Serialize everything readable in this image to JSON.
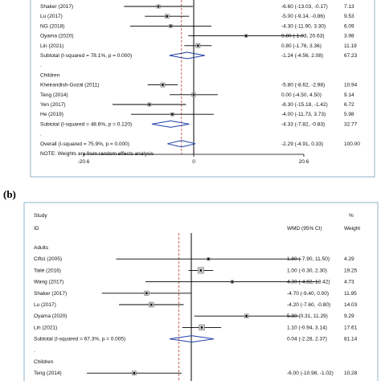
{
  "panel_labels": {
    "b": "(b)"
  },
  "chart_data": [
    {
      "type": "forest",
      "panel": "a",
      "xticks": [
        -20.6,
        0,
        20.6
      ],
      "xlim": [
        -20.6,
        20.6
      ],
      "overall_line": -2.29,
      "rows": [
        {
          "kind": "study",
          "label": "Shaker (2017)",
          "est": -6.6,
          "lo": -13.03,
          "hi": -0.17,
          "ci": "-6.60 (-13.03, -0.17)",
          "weight": "7.13"
        },
        {
          "kind": "study",
          "label": "Lu (2017)",
          "est": -5.0,
          "lo": -9.14,
          "hi": -0.86,
          "ci": "-5.00 (-9.14, -0.86)",
          "weight": "9.53"
        },
        {
          "kind": "study",
          "label": "NG (2018)",
          "est": -4.3,
          "lo": -11.9,
          "hi": 3.3,
          "ci": "-4.30 (-11.90, 3.30)",
          "weight": "6.09"
        },
        {
          "kind": "study",
          "label": "Oyama (2020)",
          "est": 9.8,
          "lo": -1.03,
          "hi": 20.63,
          "ci": "9.80 (-1.03, 20.63)",
          "weight": "3.98"
        },
        {
          "kind": "study",
          "label": "Lin (2021)",
          "est": 0.8,
          "lo": -1.76,
          "hi": 3.36,
          "ci": "0.80 (-1.76, 3.36)",
          "weight": "11.19"
        },
        {
          "kind": "subtotal",
          "label": "Subtotal  (I-squared = 78.1%, p = 0.000)",
          "est": -1.24,
          "lo": -4.56,
          "hi": 2.08,
          "ci": "-1.24 (-4.56, 2.08)",
          "weight": "67.23"
        },
        {
          "kind": "dot"
        },
        {
          "kind": "header",
          "label": "Children"
        },
        {
          "kind": "study",
          "label": "Kheirandish-Gozal (2011)",
          "est": -5.8,
          "lo": -8.62,
          "hi": -2.98,
          "ci": "-5.80 (-8.62, -2.98)",
          "weight": "10.94"
        },
        {
          "kind": "study",
          "label": "Teng (2014)",
          "est": 0.0,
          "lo": -4.5,
          "hi": 4.5,
          "ci": "0.00 (-4.50, 4.50)",
          "weight": "9.14"
        },
        {
          "kind": "study",
          "label": "Yen (2017)",
          "est": -8.3,
          "lo": -15.18,
          "hi": -1.42,
          "ci": "-8.30 (-15.18, -1.42)",
          "weight": "6.72"
        },
        {
          "kind": "study",
          "label": "He (2019)",
          "est": -4.0,
          "lo": -11.73,
          "hi": 3.73,
          "ci": "-4.00 (-11.73, 3.73)",
          "weight": "5.98"
        },
        {
          "kind": "subtotal",
          "label": "Subtotal  (I-squared = 48.6%, p = 0.120)",
          "est": -4.33,
          "lo": -7.82,
          "hi": -0.83,
          "ci": "-4.33 (-7.82, -0.83)",
          "weight": "32.77"
        },
        {
          "kind": "dot"
        },
        {
          "kind": "overall",
          "label": "Overall  (I-squared = 75.9%, p = 0.000)",
          "est": -2.29,
          "lo": -4.91,
          "hi": 0.33,
          "ci": "-2.29 (-4.91, 0.33)",
          "weight": "100.00"
        },
        {
          "kind": "note",
          "label": "NOTE: Weights are from random effects analysis"
        }
      ]
    },
    {
      "type": "forest",
      "panel": "b",
      "xticks": [],
      "xlim": [
        -12,
        12
      ],
      "overall_line": -1.3,
      "header": {
        "study": "Study",
        "id": "ID",
        "wmd": "WMD (95% CI)",
        "pct": "%",
        "weight": "Weight"
      },
      "rows": [
        {
          "kind": "header",
          "label": "Adults"
        },
        {
          "kind": "study",
          "label": "Ciftci (2005)",
          "est": 1.8,
          "lo": -7.9,
          "hi": 11.5,
          "ci": "1.80 (-7.90, 11.50)",
          "weight": "4.29"
        },
        {
          "kind": "study",
          "label": "Tailé (2016)",
          "est": 1.0,
          "lo": -0.3,
          "hi": 2.3,
          "ci": "1.00 (-0.30, 2.30)",
          "weight": "19.25"
        },
        {
          "kind": "study",
          "label": "Wang (2017)",
          "est": 4.3,
          "lo": -4.82,
          "hi": 13.42,
          "ci": "4.30 (-4.82, 13.42)",
          "weight": "4.73"
        },
        {
          "kind": "study",
          "label": "Shaker (2017)",
          "est": -4.7,
          "lo": -9.4,
          "hi": 0.0,
          "ci": "-4.70 (-9.40, 0.00)",
          "weight": "11.95"
        },
        {
          "kind": "study",
          "label": "Lu (2017)",
          "est": -4.2,
          "lo": -7.6,
          "hi": -0.8,
          "ci": "-4.20 (-7.60, -0.80)",
          "weight": "14.03"
        },
        {
          "kind": "study",
          "label": "Oyama (2020)",
          "est": 5.8,
          "lo": 0.31,
          "hi": 11.29,
          "ci": "5.80 (0.31, 11.29)",
          "weight": "9.29"
        },
        {
          "kind": "study",
          "label": "Lin (2021)",
          "est": 1.1,
          "lo": -0.94,
          "hi": 3.14,
          "ci": "1.10 (-0.94, 3.14)",
          "weight": "17.61"
        },
        {
          "kind": "subtotal",
          "label": "Subtotal  (I-squared = 67.3%, p = 0.005)",
          "est": 0.04,
          "lo": -2.28,
          "hi": 2.37,
          "ci": "0.04 (-2.28, 2.37)",
          "weight": "81.14"
        },
        {
          "kind": "dot"
        },
        {
          "kind": "header",
          "label": "Children"
        },
        {
          "kind": "study",
          "label": "Teng (2014)",
          "est": -6.0,
          "lo": -10.98,
          "hi": -1.02,
          "ci": "-6.00 (-10.98, -1.02)",
          "weight": "10.28"
        }
      ]
    }
  ]
}
